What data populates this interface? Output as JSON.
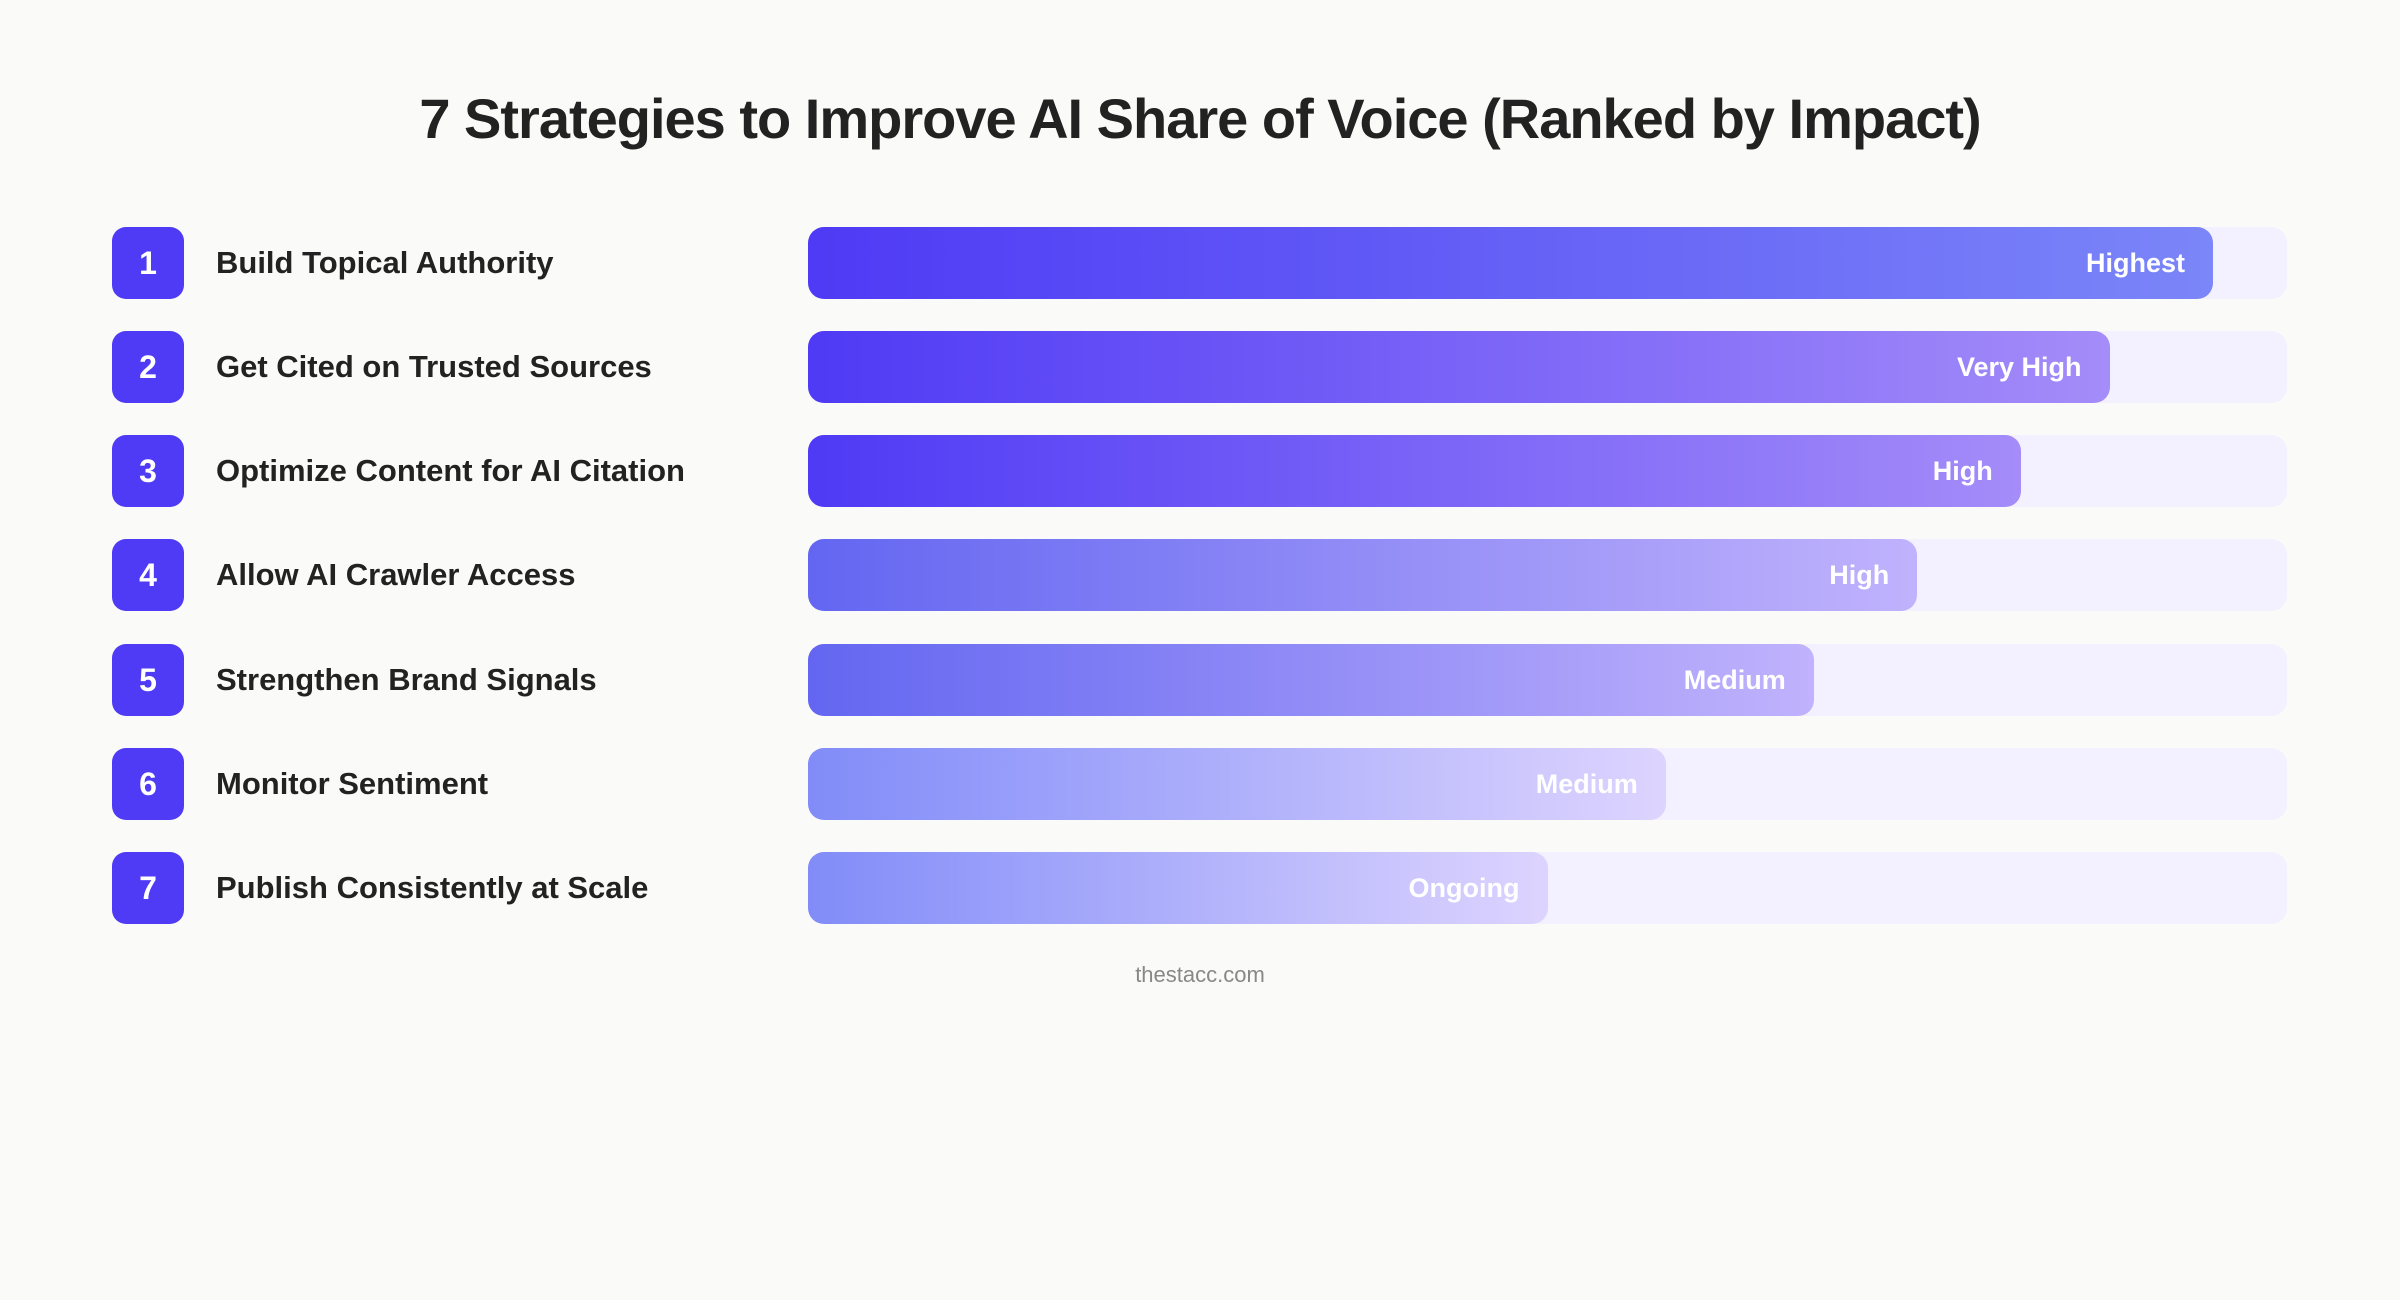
{
  "chart_data": {
    "type": "bar",
    "orientation": "horizontal",
    "title": "7 Strategies to Improve AI Share of Voice (Ranked by Impact)",
    "categories": [
      "Build Topical Authority",
      "Get Cited on Trusted Sources",
      "Optimize Content for AI Citation",
      "Allow AI Crawler Access",
      "Strengthen Brand Signals",
      "Monitor Sentiment",
      "Publish Consistently at Scale"
    ],
    "ranks": [
      "1",
      "2",
      "3",
      "4",
      "5",
      "6",
      "7"
    ],
    "data_labels": [
      "Highest",
      "Very High",
      "High",
      "High",
      "Medium",
      "Medium",
      "Ongoing"
    ],
    "values_percent": [
      95,
      88,
      82,
      75,
      68,
      58,
      50
    ],
    "gradients": [
      [
        "#4f3af5",
        "#7b86f8"
      ],
      [
        "#4f3af5",
        "#a48cf9"
      ],
      [
        "#4f3af5",
        "#a48cf9"
      ],
      [
        "#6366f1",
        "#c0b2fc"
      ],
      [
        "#6366f1",
        "#c0b2fc"
      ],
      [
        "#818cf8",
        "#ddd4fe"
      ],
      [
        "#818cf8",
        "#ddd4fe"
      ]
    ],
    "badge_color": "#4f3af5",
    "track_color": "#f3f0ff",
    "grid": false
  },
  "footer": "thestacc.com"
}
